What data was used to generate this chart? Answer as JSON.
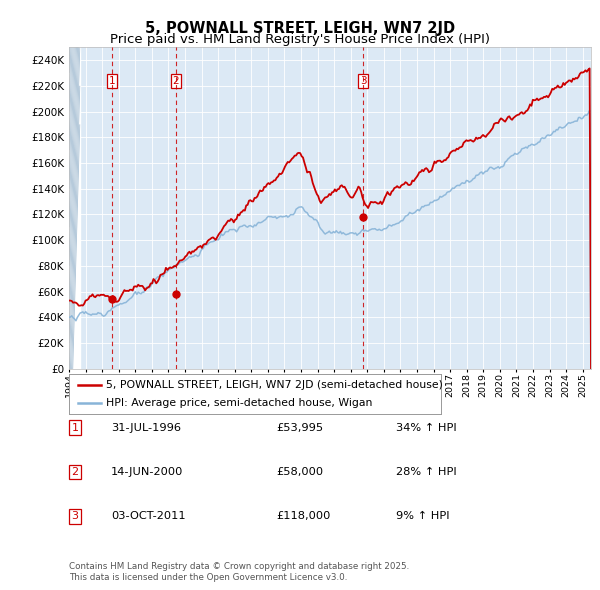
{
  "title": "5, POWNALL STREET, LEIGH, WN7 2JD",
  "subtitle": "Price paid vs. HM Land Registry's House Price Index (HPI)",
  "legend_line1": "5, POWNALL STREET, LEIGH, WN7 2JD (semi-detached house)",
  "legend_line2": "HPI: Average price, semi-detached house, Wigan",
  "sale_color": "#cc0000",
  "hpi_color": "#88b4d8",
  "background_color": "#dce9f5",
  "sale_points": [
    {
      "label": "1",
      "date_year": 1996.58,
      "price": 53995
    },
    {
      "label": "2",
      "date_year": 2000.46,
      "price": 58000
    },
    {
      "label": "3",
      "date_year": 2011.75,
      "price": 118000
    }
  ],
  "sale_annotations": [
    {
      "num": "1",
      "date_str": "31-JUL-1996",
      "price_str": "£53,995",
      "hpi_str": "34% ↑ HPI"
    },
    {
      "num": "2",
      "date_str": "14-JUN-2000",
      "price_str": "£58,000",
      "hpi_str": "28% ↑ HPI"
    },
    {
      "num": "3",
      "date_str": "03-OCT-2011",
      "price_str": "£118,000",
      "hpi_str": "9% ↑ HPI"
    }
  ],
  "vline_years": [
    1996.58,
    2000.46,
    2011.75
  ],
  "ylim": [
    0,
    250000
  ],
  "ytick_step": 20000,
  "xstart": 1994.0,
  "xend": 2025.5,
  "footnote": "Contains HM Land Registry data © Crown copyright and database right 2025.\nThis data is licensed under the Open Government Licence v3.0.",
  "title_fontsize": 10.5,
  "subtitle_fontsize": 9.5
}
